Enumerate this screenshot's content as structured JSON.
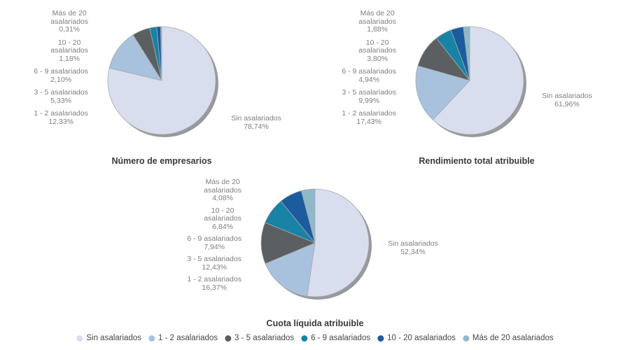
{
  "ui": {
    "background": "#ffffff",
    "slice_border_color": "#a7a9ad",
    "shadow_color": "#97999c",
    "label_text_color": "#7f7f7f",
    "title_text_color": "#3a3a3a",
    "legend_text_color": "#474747"
  },
  "legend": {
    "position": "bottom-center",
    "items": [
      {
        "label": "Sin asalariados",
        "color": "#d9deef"
      },
      {
        "label": "1 - 2 asalariados",
        "color": "#a8c2de"
      },
      {
        "label": "3 - 5 asalariados",
        "color": "#5b5f61"
      },
      {
        "label": "6 - 9 asalariados",
        "color": "#1983a5"
      },
      {
        "label": "10 - 20 asalariados",
        "color": "#1b5c9e"
      },
      {
        "label": "Más de 20 asalariados",
        "color": "#8fb9c9"
      }
    ]
  },
  "chart_data": [
    {
      "type": "pie",
      "title": "Número de empresarios",
      "categories": [
        "Sin asalariados",
        "1 - 2 asalariados",
        "3 - 5 asalariados",
        "6 - 9 asalariados",
        "10 - 20 asalariados",
        "Más de 20 asalariados"
      ],
      "values": [
        78.74,
        12.33,
        5.33,
        2.1,
        1.18,
        0.31
      ],
      "value_labels": [
        "78,74%",
        "12,33%",
        "5,33%",
        "2,10%",
        "1,18%",
        "0,31%"
      ],
      "start_angle_deg": 0,
      "direction": "clockwise",
      "left_labels": [
        "Más de 20\nasalariados\n0,31%",
        "10 - 20\nasalariados\n1,18%",
        "6 - 9 asalariados\n2,10%",
        "3 - 5 asalariados\n5,33%",
        "1 - 2 asalariados\n12,33%"
      ],
      "right_label": "Sin asalariados\n78,74%"
    },
    {
      "type": "pie",
      "title": "Rendimiento total atribuible",
      "categories": [
        "Sin asalariados",
        "1 - 2 asalariados",
        "3 - 5 asalariados",
        "6 - 9 asalariados",
        "10 - 20 asalariados",
        "Más de 20 asalariados"
      ],
      "values": [
        61.96,
        17.43,
        9.99,
        4.94,
        3.8,
        1.88
      ],
      "value_labels": [
        "61,96%",
        "17,43%",
        "9,99%",
        "4,94%",
        "3,80%",
        "1,88%"
      ],
      "start_angle_deg": 0,
      "direction": "clockwise",
      "left_labels": [
        "Más de 20\nasalariados\n1,88%",
        "10 - 20\nasalariados\n3,80%",
        "6 - 9 asalariados\n4,94%",
        "3 - 5 asalariados\n9,99%",
        "1 - 2 asalariados\n17,43%"
      ],
      "right_label": "Sin asalariados\n61,96%"
    },
    {
      "type": "pie",
      "title": "Cuota líquida atribuible",
      "categories": [
        "Sin asalariados",
        "1 - 2 asalariados",
        "3 - 5 asalariados",
        "6 - 9 asalariados",
        "10 - 20 asalariados",
        "Más de 20 asalariados"
      ],
      "values": [
        52.34,
        16.37,
        12.43,
        7.94,
        6.84,
        4.08
      ],
      "value_labels": [
        "52,34%",
        "16,37%",
        "12,43%",
        "7,94%",
        "6,84%",
        "4,08%"
      ],
      "start_angle_deg": 0,
      "direction": "clockwise",
      "left_labels": [
        "Más de 20\nasalariados\n4,08%",
        "10 - 20\nasalariados\n6,84%",
        "6 - 9 asalariados\n7,94%",
        "3 - 5 asalariados\n12,43%",
        "1 - 2 asalariados\n16,37%"
      ],
      "right_label": "Sin asalariados\n52,34%"
    }
  ]
}
